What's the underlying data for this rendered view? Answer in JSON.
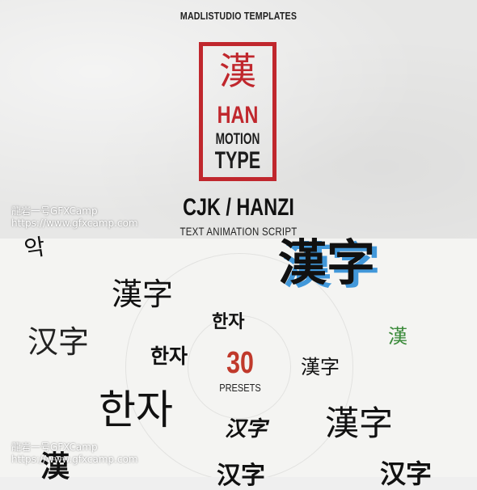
{
  "header": {
    "studio": "MADLISTUDIO TEMPLATES"
  },
  "logo": {
    "han_char": "漢",
    "han": "HAN",
    "motion": "MOTION",
    "type": "TYPE"
  },
  "title": {
    "main": "CJK / HANZI",
    "subtitle": "TEXT ANIMATION SCRIPT"
  },
  "watermark": {
    "line1": "龍岩一号GFXCamp",
    "line2": "https://www.gfxcamp.com"
  },
  "presets": {
    "count": "30",
    "label": "PRESETS"
  },
  "samples": {
    "korean_small": "악",
    "kanji_big": "漢字",
    "kanji_mid": "漢字",
    "kanji_right": "漢字",
    "kanji_small_right": "漢字",
    "hanzi_left": "汉字",
    "hanzi_brush": "汉字",
    "korean_top": "한자",
    "korean_left": "한자",
    "korean_big": "한자",
    "single_green": "漢",
    "bottom_left": "漢",
    "bottom_mid": "汉字",
    "bottom_right": "汉字"
  },
  "colors": {
    "accent_red": "#c0272d",
    "number_red": "#c0392b",
    "blue_shadow": "#2f8fd8",
    "green": "#3a8a3a"
  }
}
